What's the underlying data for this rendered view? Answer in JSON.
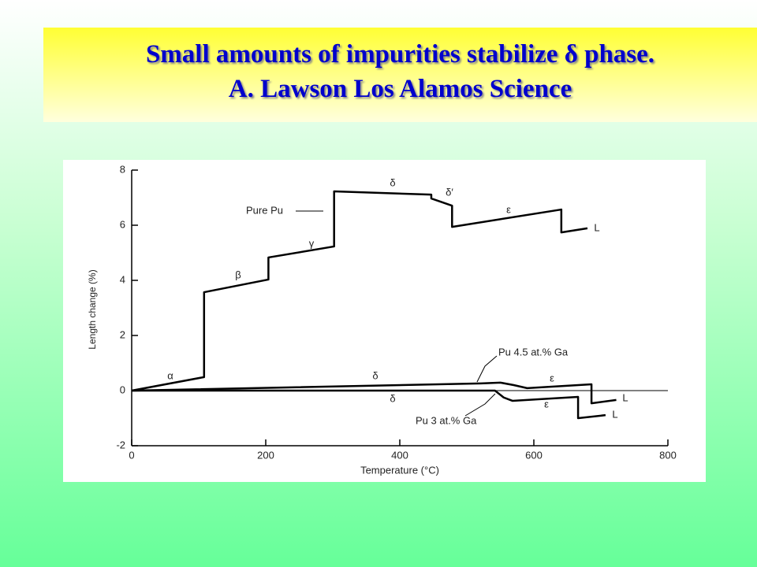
{
  "slide": {
    "title": "Small amounts of impurities stabilize δ phase.",
    "subtitle": "A. Lawson Los Alamos Science"
  },
  "chart_data": {
    "type": "line",
    "x_label": "Temperature (°C)",
    "y_label": "Length change (%)",
    "xlim": [
      0,
      800
    ],
    "xticks": [
      0,
      200,
      400,
      600,
      800
    ],
    "ylim": [
      -2,
      8
    ],
    "yticks": [
      -2,
      0,
      2,
      4,
      6,
      8
    ],
    "series": [
      {
        "name": "Pure Pu",
        "color": "#000000",
        "x": [
          0,
          108,
          108,
          204,
          204,
          302,
          302,
          447,
          447,
          478,
          478,
          641,
          641,
          680
        ],
        "values": [
          0,
          0.49,
          3.57,
          4.03,
          4.83,
          5.23,
          7.23,
          7.11,
          6.97,
          6.71,
          5.94,
          6.57,
          5.74,
          5.89
        ]
      },
      {
        "name": "Pu 4.5 at.% Ga",
        "color": "#000000",
        "x": [
          0,
          521,
          550,
          570,
          590,
          686,
          686,
          723
        ],
        "values": [
          0,
          0.26,
          0.29,
          0.2,
          0.09,
          0.23,
          -0.46,
          -0.34
        ]
      },
      {
        "name": "Pu 3 at.% Ga",
        "color": "#000000",
        "x": [
          0,
          542,
          555,
          568,
          666,
          666,
          707
        ],
        "values": [
          0,
          0,
          -0.25,
          -0.37,
          -0.23,
          -1.0,
          -0.89
        ]
      }
    ],
    "annotations": [
      "α",
      "β",
      "γ",
      "δ",
      "δ′",
      "ε",
      "L",
      "δ",
      "ε",
      "L",
      "δ",
      "ε",
      "L"
    ]
  }
}
